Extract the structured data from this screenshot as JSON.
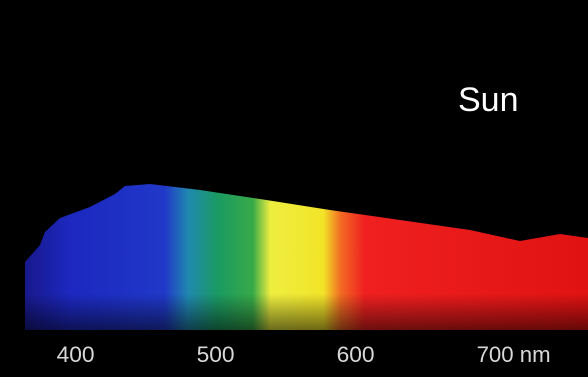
{
  "chart_data": {
    "type": "spectrum",
    "annotation": "Sun",
    "xlim": [
      346,
      766
    ],
    "xticks": [
      400,
      500,
      600,
      {
        "value": 700,
        "label": "700 nm"
      }
    ]
  }
}
